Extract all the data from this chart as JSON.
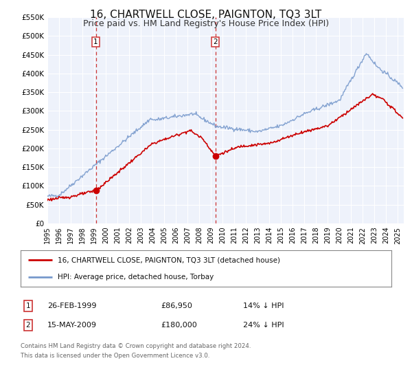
{
  "title": "16, CHARTWELL CLOSE, PAIGNTON, TQ3 3LT",
  "subtitle": "Price paid vs. HM Land Registry's House Price Index (HPI)",
  "title_fontsize": 11,
  "subtitle_fontsize": 9,
  "background_color": "#ffffff",
  "plot_bg_color": "#eef2fb",
  "grid_color": "#ffffff",
  "legend_label_red": "16, CHARTWELL CLOSE, PAIGNTON, TQ3 3LT (detached house)",
  "legend_label_blue": "HPI: Average price, detached house, Torbay",
  "red_color": "#cc0000",
  "blue_color": "#7799cc",
  "marker_color": "#cc0000",
  "vline_color": "#cc3333",
  "sale1_x": 1999.15,
  "sale1_y": 86950,
  "sale2_x": 2009.37,
  "sale2_y": 180000,
  "sale1_date": "26-FEB-1999",
  "sale1_price": "£86,950",
  "sale1_hpi": "14% ↓ HPI",
  "sale2_date": "15-MAY-2009",
  "sale2_price": "£180,000",
  "sale2_hpi": "24% ↓ HPI",
  "xmin": 1995.0,
  "xmax": 2025.5,
  "ymin": 0,
  "ymax": 550000,
  "yticks": [
    0,
    50000,
    100000,
    150000,
    200000,
    250000,
    300000,
    350000,
    400000,
    450000,
    500000,
    550000
  ],
  "footnote_line1": "Contains HM Land Registry data © Crown copyright and database right 2024.",
  "footnote_line2": "This data is licensed under the Open Government Licence v3.0."
}
